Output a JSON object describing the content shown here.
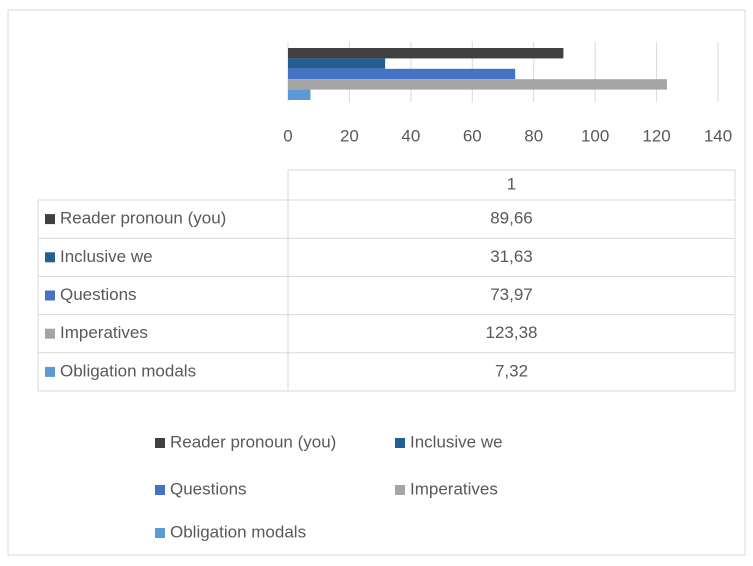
{
  "chart_data": {
    "type": "bar",
    "orientation": "horizontal",
    "categories": [
      "1"
    ],
    "series": [
      {
        "name": "Reader pronoun (you)",
        "color": "#404040",
        "values": [
          89.66
        ],
        "value_labels": [
          "89,66"
        ]
      },
      {
        "name": "Inclusive we",
        "color": "#255e91",
        "values": [
          31.63
        ],
        "value_labels": [
          "31,63"
        ]
      },
      {
        "name": "Questions",
        "color": "#4472c4",
        "values": [
          73.97
        ],
        "value_labels": [
          "73,97"
        ]
      },
      {
        "name": "Imperatives",
        "color": "#a5a5a5",
        "values": [
          123.38
        ],
        "value_labels": [
          "123,38"
        ]
      },
      {
        "name": "Obligation modals",
        "color": "#5b9bd5",
        "values": [
          7.32
        ],
        "value_labels": [
          "7,32"
        ]
      }
    ],
    "xlim": [
      0,
      140
    ],
    "xticks": [
      0,
      20,
      40,
      60,
      80,
      100,
      120,
      140
    ],
    "grid": true,
    "data_table": true,
    "legend": "bottom"
  }
}
